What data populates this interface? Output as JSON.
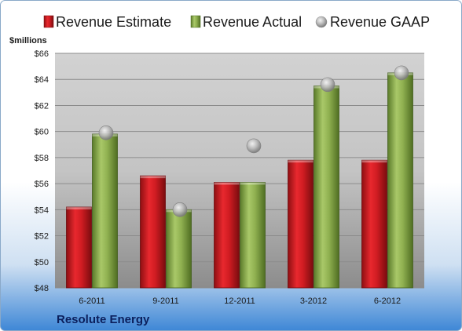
{
  "colors": {
    "estimate": "#c8191e",
    "actual": "#8aac47",
    "gaap": "#b4b4b4",
    "frame_top": "#ffffff",
    "frame_bottom": "#3e87d6"
  },
  "chart_data": {
    "type": "bar",
    "title": "",
    "xlabel": "",
    "ylabel": "$millions",
    "company": "Resolute Energy",
    "categories": [
      "6-2011",
      "9-2011",
      "12-2011",
      "3-2012",
      "6-2012"
    ],
    "series": [
      {
        "name": "Revenue Estimate",
        "type": "bar",
        "values": [
          54.2,
          56.6,
          56.1,
          57.8,
          57.8
        ]
      },
      {
        "name": "Revenue Actual",
        "type": "bar",
        "values": [
          59.8,
          54.0,
          56.1,
          63.5,
          64.5
        ]
      },
      {
        "name": "Revenue GAAP",
        "type": "scatter",
        "values": [
          59.9,
          54.0,
          58.9,
          63.6,
          64.5
        ]
      }
    ],
    "ylim": [
      48,
      66
    ],
    "yticks": [
      48,
      50,
      52,
      54,
      56,
      58,
      60,
      62,
      64,
      66
    ],
    "ytick_labels": [
      "$48",
      "$50",
      "$52",
      "$54",
      "$56",
      "$58",
      "$60",
      "$62",
      "$64",
      "$66"
    ],
    "grid": true,
    "legend_position": "top"
  }
}
